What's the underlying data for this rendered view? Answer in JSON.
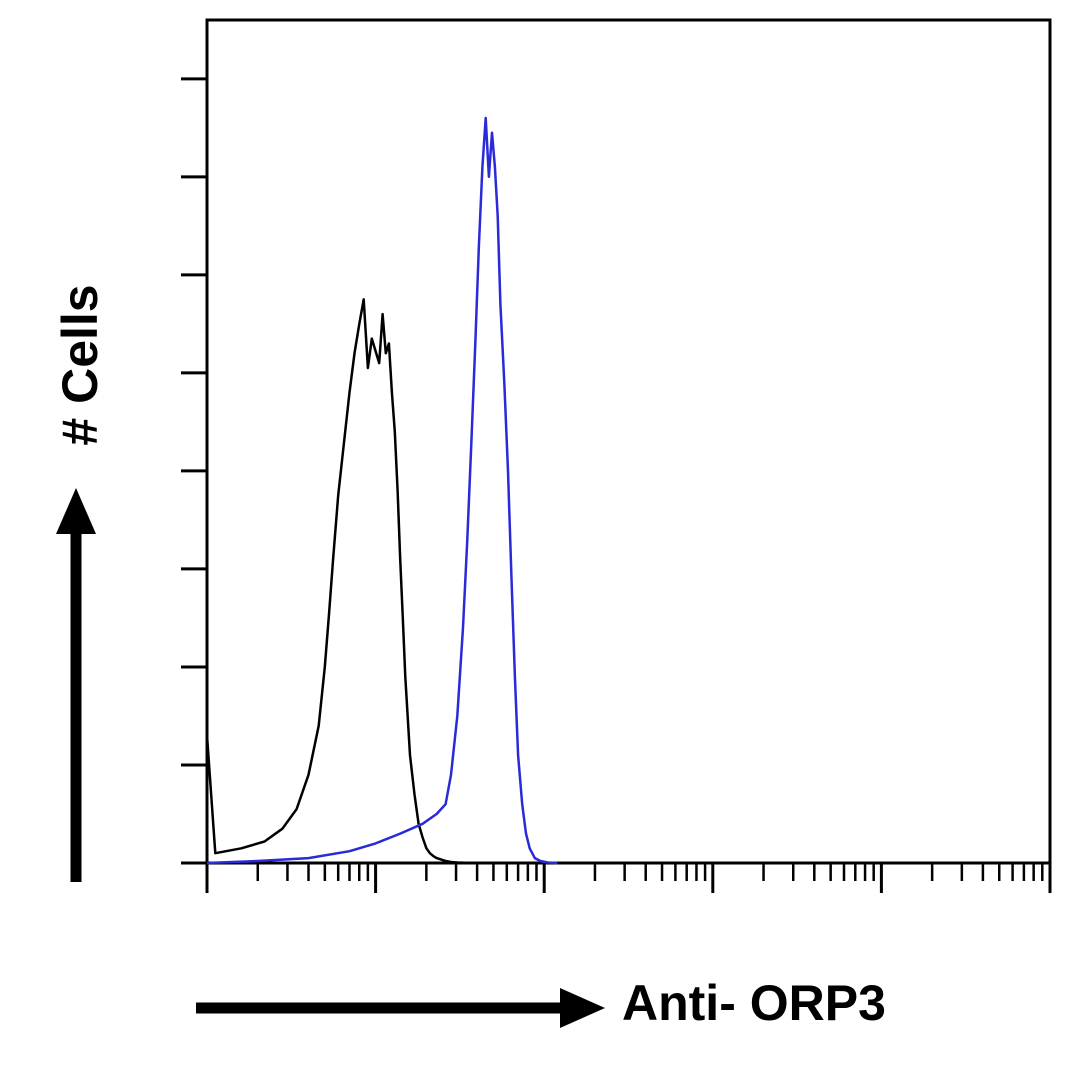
{
  "chart_data": {
    "type": "line",
    "title": "",
    "xlabel": "Anti- ORP3",
    "ylabel": "# Cells",
    "x_scale": "log",
    "x_decades": 5,
    "ylim": [
      0,
      8.6
    ],
    "y_tick_count": 8,
    "grid": false,
    "legend": "none",
    "series": [
      {
        "color": "#000000",
        "x": [
          1.0,
          1.12,
          1.6,
          2.2,
          2.8,
          3.4,
          4.0,
          4.6,
          5.0,
          5.3,
          5.6,
          6.0,
          6.5,
          7.0,
          7.5,
          8.0,
          8.5,
          9.0,
          9.5,
          10.5,
          11.0,
          11.5,
          12.0,
          12.5,
          13.0,
          13.5,
          14.0,
          14.5,
          15.0,
          16.0,
          17.0,
          18.0,
          19.0,
          20.0,
          21.0,
          22.0,
          23.0,
          24.0,
          25.0,
          26.0,
          27.0,
          28.0,
          29.0,
          30.5,
          32.0,
          34.0,
          36.0,
          39.0
        ],
        "y": [
          1.3,
          0.1,
          0.15,
          0.22,
          0.35,
          0.55,
          0.9,
          1.4,
          2.0,
          2.55,
          3.1,
          3.75,
          4.3,
          4.8,
          5.2,
          5.5,
          5.75,
          5.05,
          5.35,
          5.1,
          5.6,
          5.2,
          5.3,
          4.8,
          4.4,
          3.8,
          3.1,
          2.5,
          1.9,
          1.1,
          0.7,
          0.4,
          0.26,
          0.15,
          0.1,
          0.07,
          0.05,
          0.04,
          0.03,
          0.02,
          0.015,
          0.01,
          0.008,
          0.005,
          0.004,
          0.003,
          0.002,
          0.0
        ]
      },
      {
        "color": "#2a2ad8",
        "x": [
          1.0,
          2.0,
          4.0,
          7.0,
          10.0,
          14.0,
          19.0,
          23.0,
          26.0,
          28.0,
          30.5,
          33.0,
          35.0,
          37.0,
          39.0,
          41.0,
          43.0,
          45.0,
          47.0,
          49.0,
          51.0,
          53.0,
          55.0,
          58.0,
          61.0,
          64.0,
          67.0,
          70.0,
          74.0,
          78.0,
          82.0,
          88.0,
          95.0,
          105.0,
          120.0
        ],
        "y": [
          0.0,
          0.02,
          0.05,
          0.12,
          0.2,
          0.3,
          0.4,
          0.5,
          0.6,
          0.9,
          1.5,
          2.4,
          3.3,
          4.3,
          5.3,
          6.3,
          7.1,
          7.6,
          7.0,
          7.45,
          7.1,
          6.6,
          5.7,
          4.9,
          4.0,
          2.9,
          1.9,
          1.1,
          0.6,
          0.3,
          0.15,
          0.05,
          0.02,
          0.005,
          0.0
        ]
      }
    ]
  }
}
